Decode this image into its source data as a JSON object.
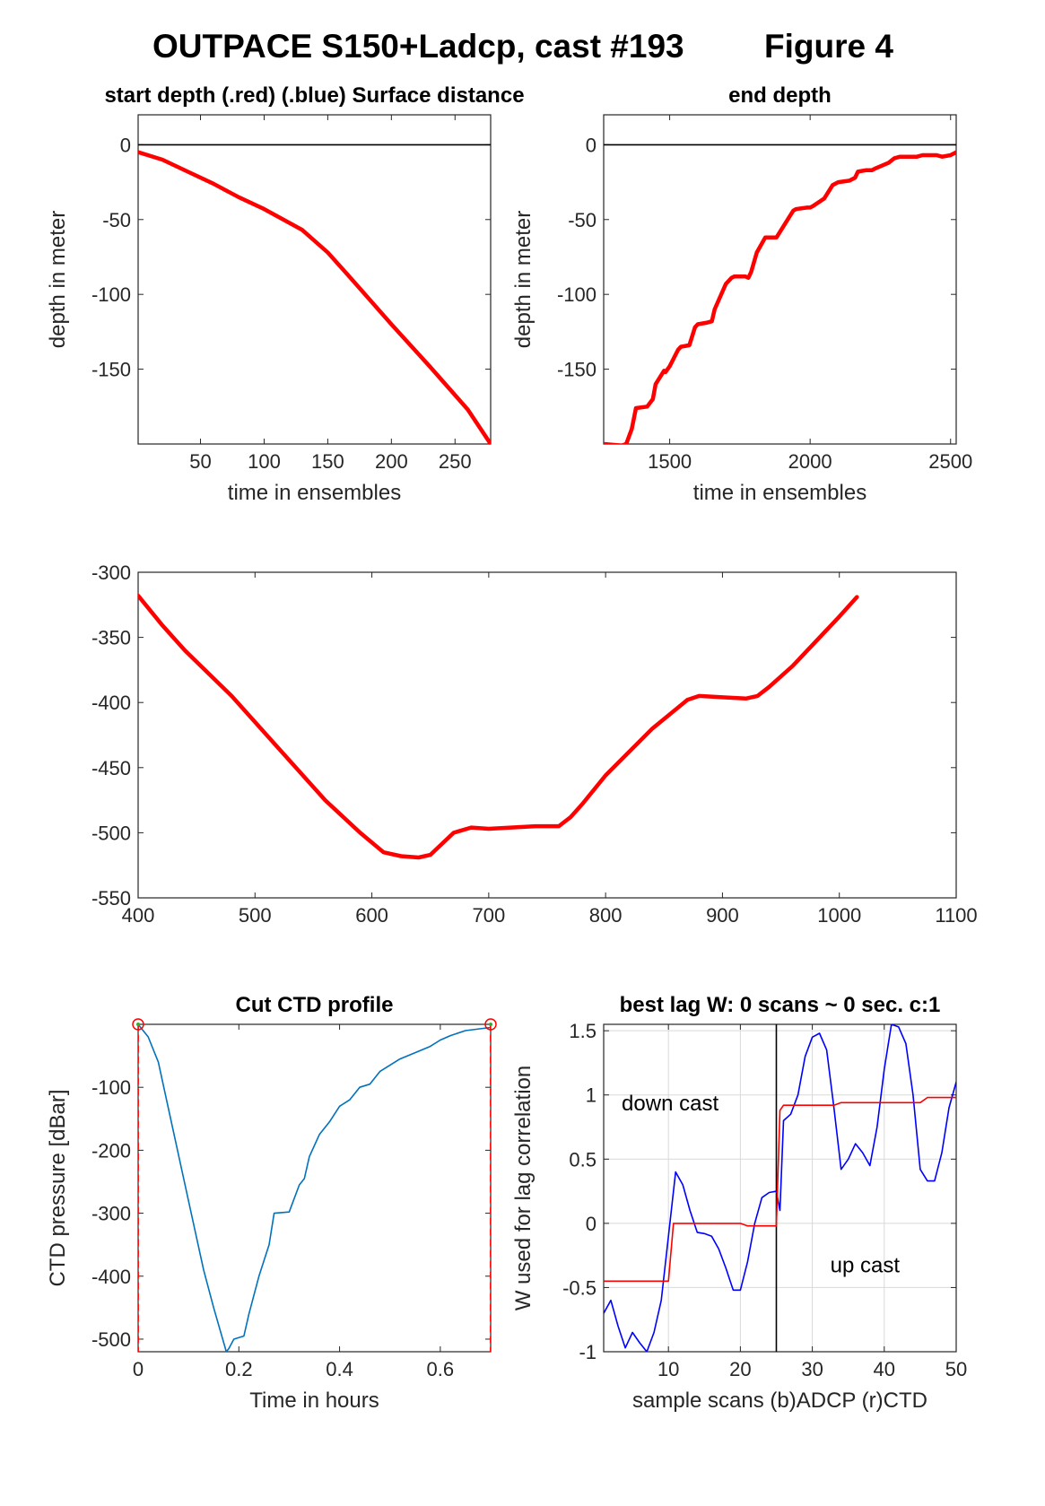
{
  "figure": {
    "title": "OUTPACE S150+Ladcp, cast #193",
    "figure_label": "Figure 4"
  },
  "chart_data": [
    {
      "id": "start_depth",
      "type": "line",
      "title": "start depth (.red) (.blue) Surface distance",
      "xlabel": "time in ensembles",
      "ylabel": "depth in meter",
      "xlim": [
        1,
        278
      ],
      "ylim": [
        -200,
        20
      ],
      "xticks": [
        50,
        100,
        150,
        200,
        250
      ],
      "yticks": [
        0,
        -50,
        -100,
        -150
      ],
      "grid": false,
      "series": [
        {
          "color": "#ff0000",
          "x": [
            1,
            20,
            40,
            60,
            80,
            100,
            130,
            150,
            170,
            200,
            230,
            260,
            278
          ],
          "y": [
            -5,
            -10,
            -18,
            -26,
            -35,
            -43,
            -57,
            -72,
            -91,
            -120,
            -148,
            -177,
            -200
          ]
        },
        {
          "color": "#000000",
          "x": [
            1,
            278
          ],
          "y": [
            0,
            0
          ]
        }
      ]
    },
    {
      "id": "end_depth",
      "type": "line",
      "title": "end depth",
      "xlabel": "time in ensembles",
      "ylabel": "depth in meter",
      "xlim": [
        1265,
        2520
      ],
      "ylim": [
        -200,
        20
      ],
      "xticks": [
        1500,
        2000,
        2500
      ],
      "yticks": [
        0,
        -50,
        -100,
        -150
      ],
      "grid": false,
      "series": [
        {
          "color": "#ff0000",
          "x": [
            1265,
            1330,
            1345,
            1365,
            1380,
            1420,
            1440,
            1450,
            1480,
            1485,
            1500,
            1530,
            1540,
            1570,
            1590,
            1600,
            1630,
            1650,
            1660,
            1700,
            1720,
            1730,
            1770,
            1780,
            1790,
            1810,
            1840,
            1860,
            1880,
            1920,
            1940,
            1950,
            1990,
            2000,
            2010,
            2050,
            2080,
            2100,
            2140,
            2160,
            2170,
            2200,
            2220,
            2230,
            2280,
            2300,
            2320,
            2350,
            2380,
            2400,
            2450,
            2470,
            2500,
            2520
          ],
          "y": [
            -200,
            -201,
            -200,
            -190,
            -176,
            -175,
            -170,
            -160,
            -151,
            -152,
            -148,
            -137,
            -135,
            -134,
            -122,
            -120,
            -119,
            -118,
            -110,
            -93,
            -89,
            -88,
            -88,
            -89,
            -85,
            -72,
            -62,
            -62,
            -62,
            -50,
            -44,
            -43,
            -42,
            -42,
            -41,
            -36,
            -27,
            -25,
            -24,
            -22,
            -18,
            -17,
            -17,
            -16,
            -12,
            -9,
            -8,
            -8,
            -8,
            -7,
            -7,
            -8,
            -7,
            -5
          ]
        },
        {
          "color": "#000000",
          "x": [
            1265,
            2520
          ],
          "y": [
            0,
            0
          ]
        }
      ]
    },
    {
      "id": "middle",
      "type": "line",
      "title": "",
      "xlabel": "",
      "ylabel": "",
      "xlim": [
        400,
        1100
      ],
      "ylim": [
        -550,
        -300
      ],
      "xticks": [
        400,
        500,
        600,
        700,
        800,
        900,
        1000,
        1100
      ],
      "yticks": [
        -300,
        -350,
        -400,
        -450,
        -500,
        -550
      ],
      "grid": false,
      "series": [
        {
          "color": "#ff0000",
          "x": [
            400,
            420,
            440,
            480,
            520,
            560,
            590,
            610,
            625,
            640,
            650,
            670,
            685,
            700,
            740,
            760,
            770,
            780,
            800,
            840,
            870,
            880,
            900,
            920,
            930,
            940,
            960,
            1000,
            1015
          ],
          "y": [
            -318,
            -340,
            -360,
            -395,
            -435,
            -475,
            -500,
            -515,
            -518,
            -519,
            -517,
            -500,
            -496,
            -497,
            -495,
            -495,
            -488,
            -478,
            -456,
            -420,
            -398,
            -395,
            -396,
            -397,
            -395,
            -388,
            -372,
            -334,
            -319
          ]
        }
      ]
    },
    {
      "id": "cut_ctd",
      "type": "line",
      "title": "Cut CTD profile",
      "xlabel": "Time in hours",
      "ylabel": "CTD pressure [dBar]",
      "xlim": [
        0,
        0.7
      ],
      "ylim": [
        -520,
        0
      ],
      "xticks": [
        0,
        0.2,
        0.4,
        0.6
      ],
      "yticks": [
        -100,
        -200,
        -300,
        -400,
        -500
      ],
      "grid": false,
      "series": [
        {
          "color": "#0072bd",
          "x": [
            0.0,
            0.02,
            0.04,
            0.07,
            0.1,
            0.13,
            0.15,
            0.175,
            0.18,
            0.19,
            0.21,
            0.22,
            0.24,
            0.26,
            0.27,
            0.3,
            0.32,
            0.33,
            0.34,
            0.36,
            0.38,
            0.4,
            0.42,
            0.44,
            0.46,
            0.48,
            0.5,
            0.52,
            0.55,
            0.58,
            0.6,
            0.62,
            0.65,
            0.7
          ],
          "y": [
            0,
            -20,
            -60,
            -170,
            -280,
            -390,
            -450,
            -520,
            -515,
            -500,
            -495,
            -460,
            -400,
            -350,
            -300,
            -298,
            -255,
            -245,
            -210,
            -175,
            -155,
            -130,
            -120,
            -100,
            -95,
            -75,
            -65,
            -55,
            -45,
            -35,
            -25,
            -18,
            -10,
            -5
          ]
        },
        {
          "color": "#ff0000",
          "dashed": true,
          "x": [
            0,
            0
          ],
          "y": [
            0,
            -520
          ]
        },
        {
          "color": "#ff0000",
          "dashed": true,
          "x": [
            0.7,
            0.7
          ],
          "y": [
            0,
            -520
          ]
        }
      ],
      "markers": [
        {
          "x": 0,
          "y": 0,
          "color": "#ff0000"
        },
        {
          "x": 0.7,
          "y": 0,
          "color": "#ff0000"
        }
      ]
    },
    {
      "id": "best_lag",
      "type": "line",
      "title": "best lag W: 0 scans ~ 0 sec.  c:1",
      "xlabel": "sample scans (b)ADCP (r)CTD",
      "ylabel": "W used for lag correlation",
      "xlim": [
        1,
        50
      ],
      "ylim": [
        -1,
        1.55
      ],
      "xticks": [
        10,
        20,
        30,
        40,
        50
      ],
      "yticks": [
        1.5,
        1,
        0.5,
        0,
        -0.5,
        -1
      ],
      "grid": true,
      "vline": 25,
      "annotations": [
        {
          "text": "down cast",
          "x": 3.5,
          "y": 0.88
        },
        {
          "text": "up cast",
          "x": 32.5,
          "y": -0.38
        }
      ],
      "series": [
        {
          "color": "#0000ff",
          "x": [
            1,
            2,
            3,
            4,
            5,
            6,
            7,
            8,
            9,
            10,
            11,
            12,
            13,
            14,
            15,
            16,
            17,
            18,
            19,
            20,
            21,
            22,
            23,
            24,
            25,
            25.5,
            26,
            27,
            28,
            29,
            30,
            31,
            32,
            33,
            34,
            35,
            36,
            37,
            38,
            39,
            40,
            41,
            42,
            43,
            44,
            45,
            46,
            47,
            48,
            49,
            50
          ],
          "y": [
            -0.7,
            -0.6,
            -0.8,
            -0.97,
            -0.85,
            -0.93,
            -1.0,
            -0.85,
            -0.6,
            -0.1,
            0.4,
            0.3,
            0.1,
            -0.07,
            -0.08,
            -0.1,
            -0.2,
            -0.35,
            -0.52,
            -0.52,
            -0.3,
            0.0,
            0.2,
            0.24,
            0.25,
            0.1,
            0.8,
            0.85,
            1.0,
            1.3,
            1.45,
            1.48,
            1.35,
            0.9,
            0.42,
            0.5,
            0.62,
            0.55,
            0.45,
            0.75,
            1.2,
            1.55,
            1.53,
            1.4,
            1.0,
            0.42,
            0.33,
            0.33,
            0.55,
            0.9,
            1.1
          ]
        },
        {
          "color": "#ff0000",
          "x": [
            1,
            10,
            10.7,
            20,
            21,
            25,
            25.5,
            26,
            33,
            34,
            45,
            46,
            50
          ],
          "y": [
            -0.45,
            -0.45,
            0.0,
            0.0,
            -0.02,
            -0.02,
            0.88,
            0.92,
            0.92,
            0.94,
            0.94,
            0.98,
            0.98
          ]
        }
      ]
    }
  ]
}
